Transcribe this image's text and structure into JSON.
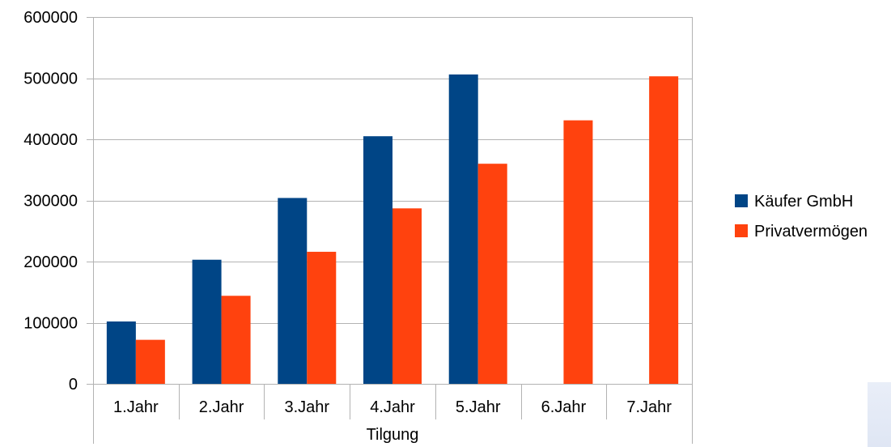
{
  "chart_data": {
    "type": "bar",
    "categories": [
      "1.Jahr",
      "2.Jahr",
      "3.Jahr",
      "4.Jahr",
      "5.Jahr",
      "6.Jahr",
      "7.Jahr"
    ],
    "series": [
      {
        "name": "Käufer GmbH",
        "color": "#004586",
        "values": [
          102000,
          203000,
          304000,
          405000,
          506000,
          null,
          null
        ]
      },
      {
        "name": "Privatvermögen",
        "color": "#ff420e",
        "values": [
          72000,
          144000,
          216000,
          287000,
          360000,
          431000,
          503000
        ]
      }
    ],
    "title": "",
    "xlabel": "Tilgung",
    "ylabel": "",
    "ylim": [
      0,
      600000
    ],
    "yticks": [
      "0",
      "100000",
      "200000",
      "300000",
      "400000",
      "500000",
      "600000"
    ],
    "grid": true,
    "legend_position": "right"
  }
}
